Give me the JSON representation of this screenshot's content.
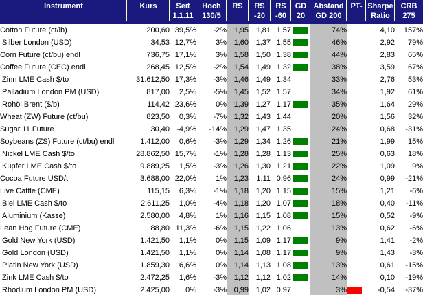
{
  "table": {
    "columns": [
      {
        "key": "instrument",
        "line1": "Instrument",
        "line2": ""
      },
      {
        "key": "kurs",
        "line1": "Kurs",
        "line2": ""
      },
      {
        "key": "seit",
        "line1": "Seit",
        "line2": "1.1.11"
      },
      {
        "key": "hoch",
        "line1": "Hoch",
        "line2": "130/5"
      },
      {
        "key": "rs",
        "line1": "RS",
        "line2": ""
      },
      {
        "key": "rs20",
        "line1": "RS",
        "line2": "-20"
      },
      {
        "key": "rs60",
        "line1": "RS",
        "line2": "-60"
      },
      {
        "key": "gd20",
        "line1": "GD",
        "line2": "20"
      },
      {
        "key": "abstand",
        "line1": "Abstand",
        "line2": "GD 200"
      },
      {
        "key": "pt",
        "line1": "PT-",
        "line2": ""
      },
      {
        "key": "sharpe",
        "line1": "Sharpe",
        "line2": "Ratio"
      },
      {
        "key": "crb",
        "line1": "CRB",
        "line2": "275"
      }
    ],
    "rows": [
      {
        "instrument": "Cotton Future (ct/lb)",
        "kurs": "200,60",
        "seit": "39,5%",
        "hoch": "-2%",
        "rs": "1,95",
        "rs20": "1,81",
        "rs60": "1,57",
        "gd20": true,
        "abstand": "74%",
        "pt": false,
        "sharpe": "4,10",
        "crb": "157%"
      },
      {
        "instrument": ".Silber London (USD)",
        "kurs": "34,53",
        "seit": "12,7%",
        "hoch": "3%",
        "rs": "1,60",
        "rs20": "1,37",
        "rs60": "1,55",
        "gd20": true,
        "abstand": "46%",
        "pt": false,
        "sharpe": "2,92",
        "crb": "79%"
      },
      {
        "instrument": "Corn Future (ct/bu) endl",
        "kurs": "736,75",
        "seit": "17,1%",
        "hoch": "3%",
        "rs": "1,58",
        "rs20": "1,50",
        "rs60": "1,38",
        "gd20": true,
        "abstand": "44%",
        "pt": false,
        "sharpe": "2,83",
        "crb": "65%"
      },
      {
        "instrument": "Coffee Future (CEC) endl",
        "kurs": "268,45",
        "seit": "12,5%",
        "hoch": "-2%",
        "rs": "1,54",
        "rs20": "1,49",
        "rs60": "1,32",
        "gd20": true,
        "abstand": "38%",
        "pt": false,
        "sharpe": "3,59",
        "crb": "67%"
      },
      {
        "instrument": ".Zinn LME Cash $/to",
        "kurs": "31.612,50",
        "seit": "17,3%",
        "hoch": "-3%",
        "rs": "1,46",
        "rs20": "1,49",
        "rs60": "1,34",
        "gd20": false,
        "abstand": "33%",
        "pt": false,
        "sharpe": "2,76",
        "crb": "53%"
      },
      {
        "instrument": ".Palladium London PM (USD)",
        "kurs": "817,00",
        "seit": "2,5%",
        "hoch": "-5%",
        "rs": "1,45",
        "rs20": "1,52",
        "rs60": "1,57",
        "gd20": false,
        "abstand": "34%",
        "pt": false,
        "sharpe": "1,92",
        "crb": "61%"
      },
      {
        "instrument": ".Rohöl Brent ($/b)",
        "kurs": "114,42",
        "seit": "23,6%",
        "hoch": "0%",
        "rs": "1,39",
        "rs20": "1,27",
        "rs60": "1,17",
        "gd20": true,
        "abstand": "35%",
        "pt": false,
        "sharpe": "1,64",
        "crb": "29%"
      },
      {
        "instrument": "Wheat (ZW) Future (ct/bu)",
        "kurs": "823,50",
        "seit": "0,3%",
        "hoch": "-7%",
        "rs": "1,32",
        "rs20": "1,43",
        "rs60": "1,44",
        "gd20": false,
        "abstand": "20%",
        "pt": false,
        "sharpe": "1,56",
        "crb": "32%"
      },
      {
        "instrument": "Sugar 11 Future",
        "kurs": "30,40",
        "seit": "-4,9%",
        "hoch": "-14%",
        "rs": "1,29",
        "rs20": "1,47",
        "rs60": "1,35",
        "gd20": false,
        "abstand": "24%",
        "pt": false,
        "sharpe": "0,68",
        "crb": "-31%"
      },
      {
        "instrument": "Soybeans (ZS) Future (ct/bu) endl",
        "kurs": "1.412,00",
        "seit": "0,6%",
        "hoch": "-3%",
        "rs": "1,29",
        "rs20": "1,34",
        "rs60": "1,26",
        "gd20": true,
        "abstand": "21%",
        "pt": false,
        "sharpe": "1,99",
        "crb": "15%"
      },
      {
        "instrument": ".Nickel LME Cash $/to",
        "kurs": "28.862,50",
        "seit": "15,7%",
        "hoch": "-1%",
        "rs": "1,28",
        "rs20": "1,28",
        "rs60": "1,13",
        "gd20": true,
        "abstand": "25%",
        "pt": false,
        "sharpe": "0,63",
        "crb": "18%"
      },
      {
        "instrument": ".Kupfer LME Cash $/to",
        "kurs": "9.889,25",
        "seit": "1,5%",
        "hoch": "-3%",
        "rs": "1,26",
        "rs20": "1,30",
        "rs60": "1,21",
        "gd20": true,
        "abstand": "22%",
        "pt": false,
        "sharpe": "1,09",
        "crb": "9%"
      },
      {
        "instrument": "Cocoa Future USD/t",
        "kurs": "3.688,00",
        "seit": "22,0%",
        "hoch": "1%",
        "rs": "1,23",
        "rs20": "1,11",
        "rs60": "0,96",
        "gd20": true,
        "abstand": "24%",
        "pt": false,
        "sharpe": "0,99",
        "crb": "-21%"
      },
      {
        "instrument": "Live Cattle (CME)",
        "kurs": "115,15",
        "seit": "6,3%",
        "hoch": "-1%",
        "rs": "1,18",
        "rs20": "1,20",
        "rs60": "1,15",
        "gd20": true,
        "abstand": "15%",
        "pt": false,
        "sharpe": "1,21",
        "crb": "-6%"
      },
      {
        "instrument": ".Blei LME Cash $/to",
        "kurs": "2.611,25",
        "seit": "1,0%",
        "hoch": "-4%",
        "rs": "1,18",
        "rs20": "1,20",
        "rs60": "1,07",
        "gd20": true,
        "abstand": "18%",
        "pt": false,
        "sharpe": "0,40",
        "crb": "-11%"
      },
      {
        "instrument": ".Aluminium (Kasse)",
        "kurs": "2.580,00",
        "seit": "4,8%",
        "hoch": "1%",
        "rs": "1,16",
        "rs20": "1,15",
        "rs60": "1,08",
        "gd20": true,
        "abstand": "15%",
        "pt": false,
        "sharpe": "0,52",
        "crb": "-9%"
      },
      {
        "instrument": "Lean Hog Future (CME)",
        "kurs": "88,80",
        "seit": "11,3%",
        "hoch": "-6%",
        "rs": "1,15",
        "rs20": "1,22",
        "rs60": "1,06",
        "gd20": false,
        "abstand": "13%",
        "pt": false,
        "sharpe": "0,62",
        "crb": "-6%"
      },
      {
        "instrument": ".Gold New York (USD)",
        "kurs": "1.421,50",
        "seit": "1,1%",
        "hoch": "0%",
        "rs": "1,15",
        "rs20": "1,09",
        "rs60": "1,17",
        "gd20": true,
        "abstand": "9%",
        "pt": false,
        "sharpe": "1,41",
        "crb": "-2%"
      },
      {
        "instrument": ".Gold London (USD)",
        "kurs": "1.421,50",
        "seit": "1,1%",
        "hoch": "0%",
        "rs": "1,14",
        "rs20": "1,08",
        "rs60": "1,17",
        "gd20": true,
        "abstand": "9%",
        "pt": false,
        "sharpe": "1,43",
        "crb": "-3%"
      },
      {
        "instrument": ".Platin New York (USD)",
        "kurs": "1.859,30",
        "seit": "6,6%",
        "hoch": "0%",
        "rs": "1,14",
        "rs20": "1,13",
        "rs60": "1,08",
        "gd20": true,
        "abstand": "13%",
        "pt": false,
        "sharpe": "0,61",
        "crb": "-15%"
      },
      {
        "instrument": ".Zink LME Cash $/to",
        "kurs": "2.472,25",
        "seit": "1,6%",
        "hoch": "-3%",
        "rs": "1,12",
        "rs20": "1,12",
        "rs60": "1,02",
        "gd20": true,
        "abstand": "14%",
        "pt": false,
        "sharpe": "0,10",
        "crb": "-19%"
      },
      {
        "instrument": ".Rhodium London PM (USD)",
        "kurs": "2.425,00",
        "seit": "0%",
        "hoch": "-3%",
        "rs": "0,99",
        "rs20": "1,02",
        "rs60": "0,97",
        "gd20": false,
        "abstand": "3%",
        "pt": true,
        "sharpe": "-0,54",
        "crb": "-37%"
      }
    ]
  },
  "icons": {
    "gd20_signal": "green-bar-icon",
    "pt_signal": "red-bar-icon"
  },
  "colors": {
    "header_bg": "#1a1a7e",
    "header_text": "#ffffff",
    "separator": "#ffffc8",
    "gray_column": "#c0c0c0",
    "green_bar": "#008000",
    "red_bar": "#ff0000",
    "body_text": "#000000",
    "body_bg": "#ffffff"
  }
}
